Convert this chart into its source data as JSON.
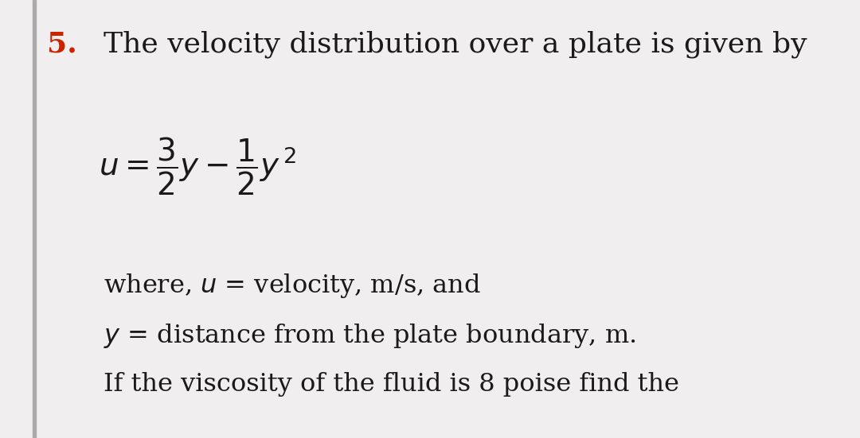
{
  "background_color": "#f0eeee",
  "left_bar_color": "#aaaaaa",
  "number_text": "5.",
  "number_color": "#cc2200",
  "title_text": "The velocity distribution over a plate is given by",
  "title_color": "#1a1a1a",
  "title_fontsize": 26,
  "number_fontsize": 26,
  "equation_fontsize": 26,
  "body_fontsize": 23,
  "line1_text": "where, $u$ = velocity, m/s, and",
  "line2_text": "$y$ = distance from the plate boundary, m.",
  "line3_text": "If the viscosity of the fluid is 8 poise find the",
  "fig_width": 10.8,
  "fig_height": 5.51,
  "dpi": 100
}
